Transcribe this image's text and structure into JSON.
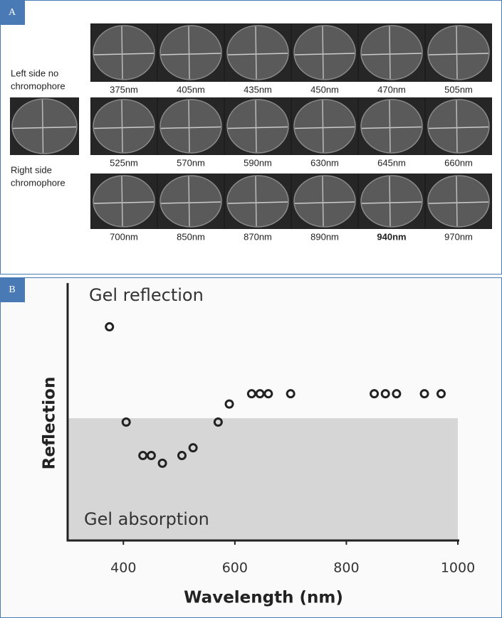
{
  "panel_a": {
    "label": "A",
    "left_label": [
      "Left side no",
      "chromophore"
    ],
    "right_label": [
      "Right side",
      "chromophore"
    ],
    "wavelength_rows": [
      [
        "375nm",
        "405nm",
        "435nm",
        "450nm",
        "470nm",
        "505nm"
      ],
      [
        "525nm",
        "570nm",
        "590nm",
        "630nm",
        "645nm",
        "660nm"
      ],
      [
        "700nm",
        "850nm",
        "870nm",
        "890nm",
        "940nm",
        "970nm"
      ]
    ],
    "highlight_index": [
      2,
      4
    ]
  },
  "panel_b": {
    "label": "B"
  },
  "chart_data": {
    "type": "scatter",
    "x": [
      375,
      405,
      435,
      450,
      470,
      505,
      525,
      570,
      590,
      630,
      645,
      660,
      700,
      850,
      870,
      890,
      940,
      970
    ],
    "values": [
      83,
      46,
      33,
      33,
      30,
      33,
      36,
      46,
      53,
      57,
      57,
      57,
      57,
      57,
      57,
      57,
      57,
      57
    ],
    "xlim": [
      300,
      1000
    ],
    "xticks": [
      400,
      600,
      800,
      1000
    ],
    "ylim": [
      0,
      100
    ],
    "absorption_region_top": 47.5,
    "annotations": [
      "Gel reflection",
      "Gel absorption"
    ],
    "xlabel": "Wavelength (nm)",
    "ylabel": "Reflection",
    "color": "#222222",
    "region_color": "#d6d6d6"
  }
}
